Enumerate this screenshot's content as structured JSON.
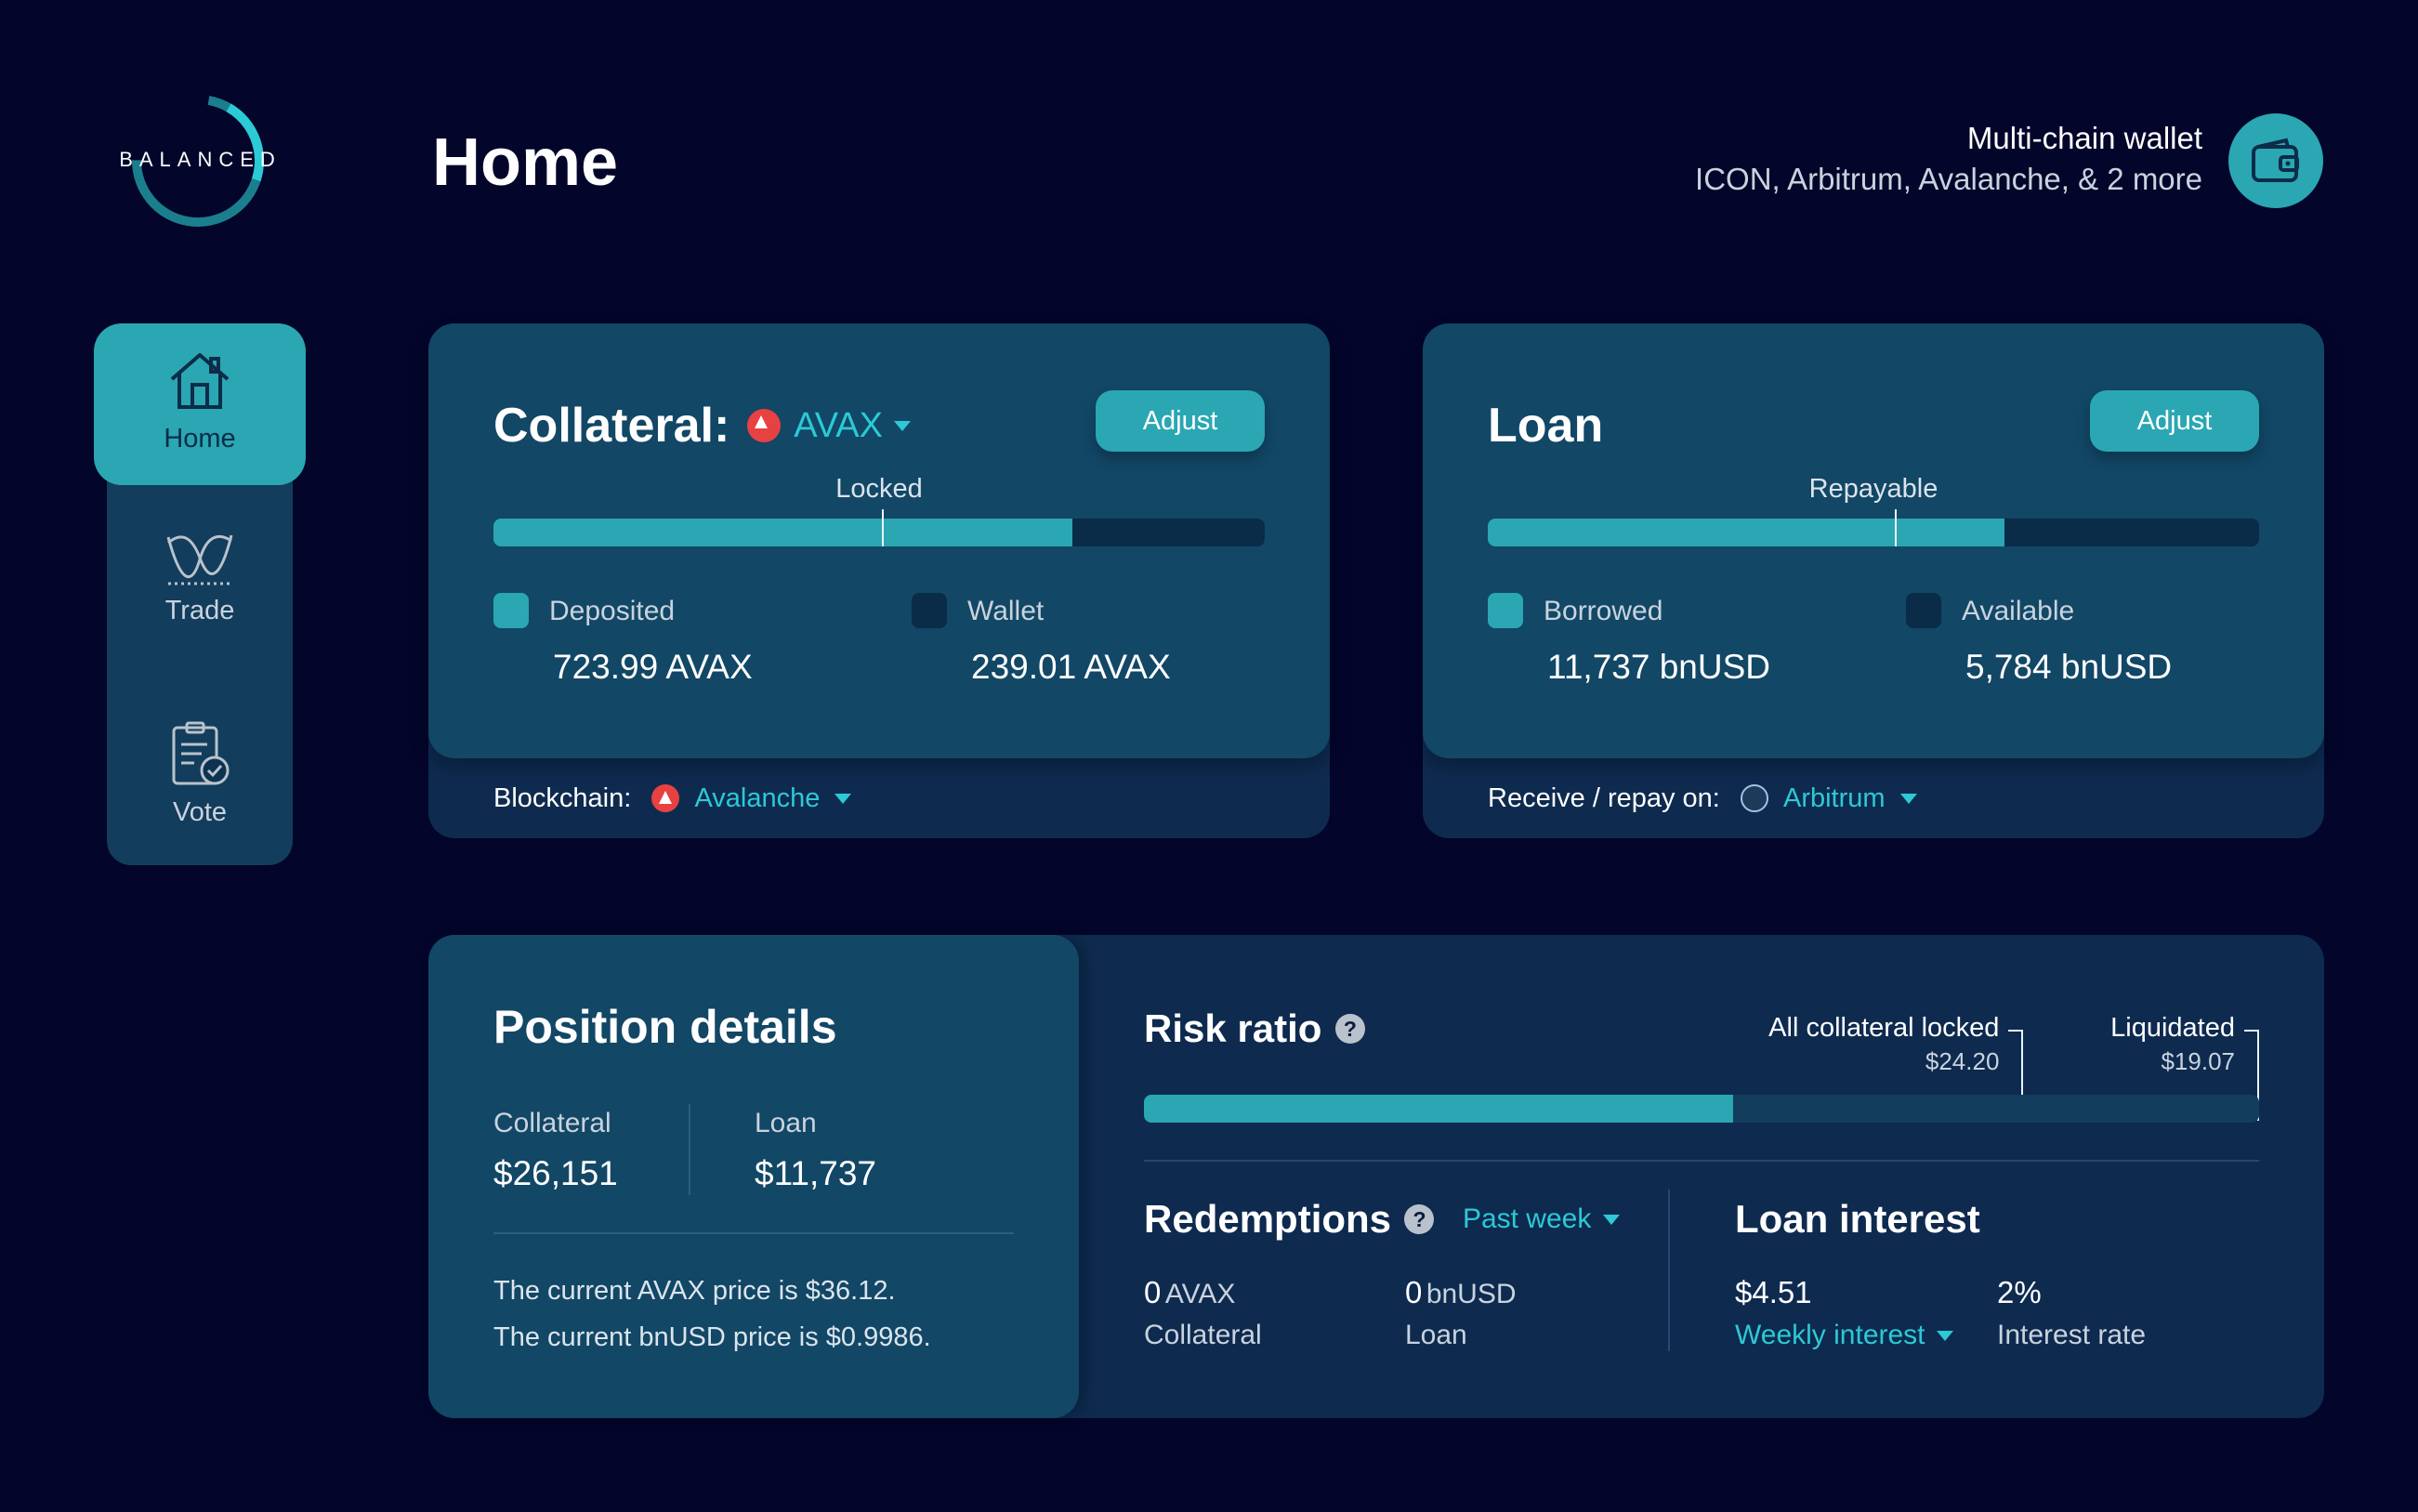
{
  "logo": {
    "text": "BALANCED"
  },
  "header": {
    "title": "Home",
    "wallet_title": "Multi-chain wallet",
    "wallet_subtitle": "ICON, Arbitrum, Avalanche, & 2 more",
    "wallet_icon": "wallet-icon"
  },
  "sidebar": {
    "items": [
      {
        "label": "Home",
        "icon": "house-icon",
        "active": true
      },
      {
        "label": "Trade",
        "icon": "trade-chart-icon",
        "active": false
      },
      {
        "label": "Vote",
        "icon": "clipboard-check-icon",
        "active": false
      }
    ]
  },
  "collateral": {
    "title": "Collateral:",
    "asset": "AVAX",
    "adjust_label": "Adjust",
    "bar_label": "Locked",
    "bar_fill_fraction": 0.75,
    "bar_marker_fraction": 0.504,
    "deposited_label": "Deposited",
    "deposited_value": "723.99 AVAX",
    "wallet_label": "Wallet",
    "wallet_value": "239.01 AVAX",
    "footer_label": "Blockchain:",
    "footer_chain": "Avalanche"
  },
  "loan": {
    "title": "Loan",
    "adjust_label": "Adjust",
    "bar_label": "Repayable",
    "bar_fill_fraction": 0.67,
    "bar_marker_fraction": 0.528,
    "borrowed_label": "Borrowed",
    "borrowed_value": "11,737 bnUSD",
    "available_label": "Available",
    "available_value": "5,784 bnUSD",
    "footer_label": "Receive / repay on:",
    "footer_chain": "Arbitrum"
  },
  "position": {
    "title": "Position details",
    "collateral_label": "Collateral",
    "collateral_value": "$26,151",
    "loan_label": "Loan",
    "loan_value": "$11,737",
    "price_line_1": "The current AVAX price is $36.12.",
    "price_line_2": "The current bnUSD price is $0.9986."
  },
  "risk": {
    "title": "Risk ratio",
    "fill_fraction": 0.528,
    "locked_label": "All collateral locked",
    "locked_price": "$24.20",
    "locked_fraction": 0.787,
    "liquidated_label": "Liquidated",
    "liquidated_price": "$19.07",
    "liquidated_fraction": 1.0
  },
  "redemptions": {
    "title": "Redemptions",
    "period": "Past week",
    "collateral_amount": "0",
    "collateral_unit": "AVAX",
    "collateral_label": "Collateral",
    "loan_amount": "0",
    "loan_unit": "bnUSD",
    "loan_label": "Loan"
  },
  "interest": {
    "title": "Loan interest",
    "amount": "$4.51",
    "period": "Weekly interest",
    "rate": "2%",
    "rate_label": "Interest rate"
  },
  "colors": {
    "background": "#03052a",
    "card": "#124766",
    "card_dark": "#0e2a4f",
    "accent": "#2aa7b2",
    "accent_text": "#2cc9d6"
  }
}
